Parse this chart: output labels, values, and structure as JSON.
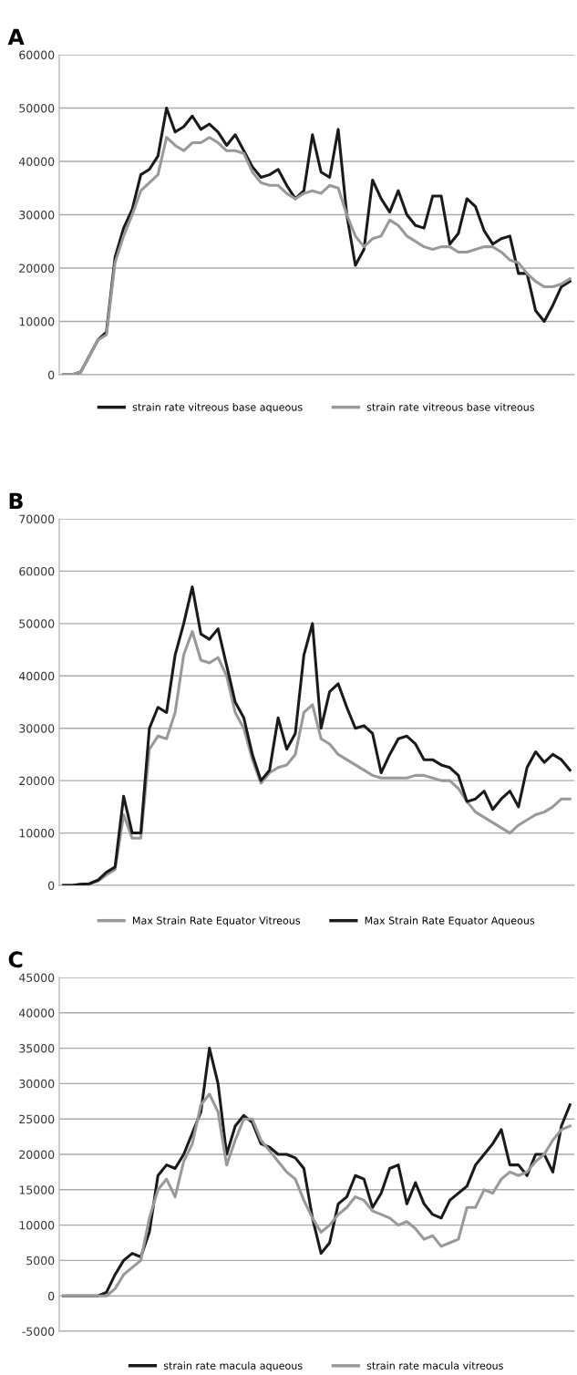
{
  "chart_data": [
    {
      "type": "line",
      "title": "A",
      "categories": [
        null,
        null,
        null,
        null,
        null,
        null,
        null,
        null,
        null,
        null,
        null,
        null,
        null,
        null,
        null,
        null,
        null,
        null,
        null,
        null,
        null,
        null,
        null,
        null,
        null,
        null,
        null,
        null,
        null,
        null,
        null,
        null,
        null,
        null,
        null,
        null,
        null,
        null,
        null,
        null,
        null,
        null,
        null,
        null,
        null,
        null,
        null,
        null,
        null,
        null,
        null,
        null,
        null,
        null,
        null,
        null,
        null,
        null,
        null,
        null
      ],
      "series": [
        {
          "name": "strain rate vitreous base aqueous",
          "color": "#1a1a1a",
          "values": [
            0,
            0,
            500,
            3500,
            6500,
            8000,
            22000,
            27500,
            31000,
            37500,
            38500,
            41000,
            50000,
            45500,
            46500,
            48500,
            46000,
            47000,
            45500,
            43000,
            45000,
            42000,
            39000,
            37000,
            37500,
            38500,
            35500,
            33000,
            34500,
            45000,
            38000,
            37000,
            46000,
            30000,
            20500,
            23500,
            36500,
            33000,
            30500,
            34500,
            30000,
            28000,
            27500,
            33500,
            33500,
            24500,
            26500,
            33000,
            31500,
            27000,
            24500,
            25500,
            26000,
            19000,
            19000,
            12000,
            10000,
            13000,
            16500,
            17500
          ]
        },
        {
          "name": "strain rate vitreous base vitreous",
          "color": "#999999",
          "values": [
            0,
            0,
            500,
            3500,
            6500,
            7500,
            21000,
            26000,
            30000,
            34500,
            36000,
            37500,
            44500,
            43000,
            42000,
            43500,
            43500,
            44500,
            43500,
            42000,
            42000,
            41500,
            38000,
            36000,
            35500,
            35500,
            34000,
            33000,
            34000,
            34500,
            34000,
            35500,
            35000,
            30000,
            26000,
            24000,
            25500,
            26000,
            29000,
            28000,
            26000,
            25000,
            24000,
            23500,
            24000,
            24000,
            23000,
            23000,
            23500,
            24000,
            24000,
            23000,
            21500,
            21000,
            19000,
            17500,
            16500,
            16500,
            17000,
            18000
          ]
        }
      ],
      "ylim": [
        0,
        60000
      ],
      "yticks": [
        0,
        10000,
        20000,
        30000,
        40000,
        50000,
        60000
      ],
      "grid": "y",
      "legend": "bottom",
      "tick_labels": "y",
      "line_style": "solid"
    },
    {
      "type": "line",
      "title": "B",
      "categories": [
        null,
        null,
        null,
        null,
        null,
        null,
        null,
        null,
        null,
        null,
        null,
        null,
        null,
        null,
        null,
        null,
        null,
        null,
        null,
        null,
        null,
        null,
        null,
        null,
        null,
        null,
        null,
        null,
        null,
        null,
        null,
        null,
        null,
        null,
        null,
        null,
        null,
        null,
        null,
        null,
        null,
        null,
        null,
        null,
        null,
        null,
        null,
        null,
        null,
        null,
        null,
        null,
        null,
        null,
        null,
        null,
        null,
        null,
        null,
        null
      ],
      "series": [
        {
          "name": "Max Strain Rate Equator Vitreous",
          "color": "#999999",
          "values": [
            0,
            0,
            200,
            300,
            800,
            2000,
            3000,
            13500,
            9000,
            9000,
            26000,
            28500,
            28000,
            33000,
            44000,
            48500,
            43000,
            42500,
            43500,
            40000,
            33000,
            30000,
            24000,
            19500,
            21500,
            22500,
            23000,
            25000,
            33000,
            34500,
            28000,
            27000,
            25000,
            24000,
            23000,
            22000,
            21000,
            20500,
            20500,
            20500,
            20500,
            21000,
            21000,
            20500,
            20000,
            20000,
            18500,
            16000,
            14000,
            13000,
            12000,
            11000,
            10000,
            11500,
            12500,
            13500,
            14000,
            15000,
            16500,
            16500
          ]
        },
        {
          "name": "Max Strain Rate Equator Aqueous",
          "color": "#1a1a1a",
          "values": [
            0,
            0,
            200,
            300,
            1000,
            2500,
            3500,
            17000,
            10000,
            10000,
            30000,
            34000,
            33000,
            44000,
            50000,
            57000,
            48000,
            47000,
            49000,
            42000,
            35000,
            32000,
            25000,
            20000,
            22000,
            32000,
            26000,
            29000,
            44000,
            50000,
            30000,
            37000,
            38500,
            34000,
            30000,
            30500,
            29000,
            21500,
            25000,
            28000,
            28500,
            27000,
            24000,
            24000,
            23000,
            22500,
            21000,
            16000,
            16500,
            18000,
            14500,
            16500,
            18000,
            15000,
            22500,
            25500,
            23500,
            25000,
            24000,
            22000
          ]
        }
      ],
      "ylim": [
        0,
        70000
      ],
      "yticks": [
        0,
        10000,
        20000,
        30000,
        40000,
        50000,
        60000,
        70000
      ],
      "grid": "y",
      "legend": "bottom",
      "tick_labels": "y",
      "line_style": "solid"
    },
    {
      "type": "line",
      "title": "C",
      "categories": [
        null,
        null,
        null,
        null,
        null,
        null,
        null,
        null,
        null,
        null,
        null,
        null,
        null,
        null,
        null,
        null,
        null,
        null,
        null,
        null,
        null,
        null,
        null,
        null,
        null,
        null,
        null,
        null,
        null,
        null,
        null,
        null,
        null,
        null,
        null,
        null,
        null,
        null,
        null,
        null,
        null,
        null,
        null,
        null,
        null,
        null,
        null,
        null,
        null,
        null,
        null,
        null,
        null,
        null,
        null,
        null,
        null,
        null,
        null,
        null
      ],
      "series": [
        {
          "name": "strain rate macula aqueous",
          "color": "#1a1a1a",
          "values": [
            0,
            0,
            0,
            0,
            0,
            500,
            3000,
            5000,
            6000,
            5500,
            9000,
            17000,
            18500,
            18000,
            20000,
            23000,
            26000,
            35000,
            30000,
            20000,
            24000,
            25500,
            24500,
            21500,
            21000,
            20000,
            20000,
            19500,
            18000,
            11000,
            6000,
            7500,
            13000,
            14000,
            17000,
            16500,
            12500,
            14500,
            18000,
            18500,
            13000,
            16000,
            13000,
            11500,
            11000,
            13500,
            14500,
            15500,
            18500,
            20000,
            21500,
            23500,
            18500,
            18500,
            17000,
            20000,
            20000,
            17500,
            24000,
            27000
          ]
        },
        {
          "name": "strain rate macula vitreous",
          "color": "#999999",
          "values": [
            0,
            0,
            0,
            0,
            0,
            0,
            1000,
            3000,
            4000,
            5000,
            11000,
            15000,
            16500,
            14000,
            19000,
            21500,
            27000,
            28500,
            26000,
            18500,
            22000,
            25000,
            25000,
            22000,
            20500,
            19000,
            17500,
            16500,
            13500,
            11000,
            9000,
            10000,
            11500,
            12500,
            14000,
            13500,
            12000,
            11500,
            11000,
            10000,
            10500,
            9500,
            8000,
            8500,
            7000,
            7500,
            8000,
            12500,
            12500,
            15000,
            14500,
            16500,
            17500,
            17000,
            17500,
            19000,
            20000,
            22000,
            23500,
            24000
          ]
        }
      ],
      "ylim": [
        -5000,
        45000
      ],
      "yticks": [
        -5000,
        0,
        5000,
        10000,
        15000,
        20000,
        25000,
        30000,
        35000,
        40000,
        45000
      ],
      "grid": "y",
      "legend": "bottom",
      "tick_labels": "y",
      "line_style": "solid"
    }
  ]
}
